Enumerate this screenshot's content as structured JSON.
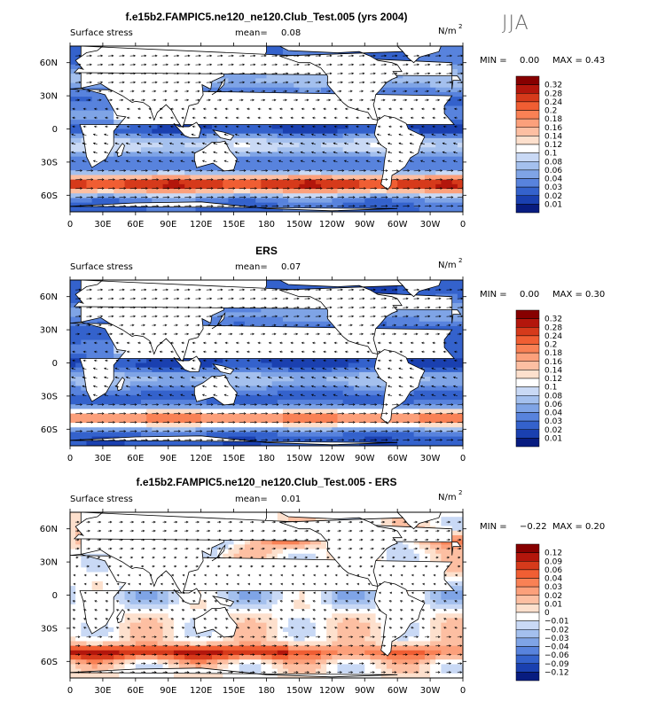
{
  "figure": {
    "season": "JJA"
  },
  "chart_data": [
    {
      "type": "heatmap",
      "title": "f.e15b2.FAMPIC5.ne120_ne120.Club_Test.005 (yrs 2004)",
      "left_label": "Surface stress",
      "mean_label": "mean=",
      "mean_value": "0.08",
      "units_label": "N/m",
      "units_sup": "2",
      "min_label": "MIN =",
      "min_value": "0.00",
      "max_label": "MAX =",
      "max_value": "0.43",
      "x_ticks": [
        "0",
        "30E",
        "60E",
        "90E",
        "120E",
        "150E",
        "180",
        "150W",
        "120W",
        "90W",
        "60W",
        "30W",
        "0"
      ],
      "y_ticks": [
        "60N",
        "30N",
        "0",
        "30S",
        "60S"
      ],
      "y_values": [
        60,
        30,
        0,
        -30,
        -60
      ],
      "ylim": [
        -75,
        75
      ],
      "colorbar_levels": [
        "0.32",
        "0.28",
        "0.24",
        "0.2",
        "0.18",
        "0.16",
        "0.14",
        "0.12",
        "0.1",
        "0.08",
        "0.06",
        "0.04",
        "0.03",
        "0.02",
        "0.01"
      ],
      "colorbar_colors": [
        "#870000",
        "#b3160c",
        "#d63a1b",
        "#f05e33",
        "#f98155",
        "#fca07b",
        "#fdbfa2",
        "#fde0cd",
        "#ffffff",
        "#c9d9f5",
        "#a4c0ee",
        "#7fa4e6",
        "#5883dd",
        "#3462cc",
        "#1a40b0",
        "#081c80"
      ]
    },
    {
      "type": "heatmap",
      "title": "ERS",
      "left_label": "Surface stress",
      "mean_label": "mean=",
      "mean_value": "0.07",
      "units_label": "N/m",
      "units_sup": "2",
      "min_label": "MIN =",
      "min_value": "0.00",
      "max_label": "MAX =",
      "max_value": "0.30",
      "x_ticks": [
        "0",
        "30E",
        "60E",
        "90E",
        "120E",
        "150E",
        "180",
        "150W",
        "120W",
        "90W",
        "60W",
        "30W",
        "0"
      ],
      "y_ticks": [
        "60N",
        "30N",
        "0",
        "30S",
        "60S"
      ],
      "y_values": [
        60,
        30,
        0,
        -30,
        -60
      ],
      "ylim": [
        -75,
        75
      ],
      "colorbar_levels": [
        "0.32",
        "0.28",
        "0.24",
        "0.2",
        "0.18",
        "0.16",
        "0.14",
        "0.12",
        "0.1",
        "0.08",
        "0.06",
        "0.04",
        "0.03",
        "0.02",
        "0.01"
      ],
      "colorbar_colors": [
        "#870000",
        "#b3160c",
        "#d63a1b",
        "#f05e33",
        "#f98155",
        "#fca07b",
        "#fdbfa2",
        "#fde0cd",
        "#ffffff",
        "#c9d9f5",
        "#a4c0ee",
        "#7fa4e6",
        "#5883dd",
        "#3462cc",
        "#1a40b0",
        "#081c80"
      ]
    },
    {
      "type": "heatmap",
      "title": "f.e15b2.FAMPIC5.ne120_ne120.Club_Test.005 - ERS",
      "left_label": "Surface stress",
      "mean_label": "mean=",
      "mean_value": "0.01",
      "units_label": "N/m",
      "units_sup": "2",
      "min_label": "MIN =",
      "min_value": "−0.22",
      "max_label": "MAX =",
      "max_value": "0.20",
      "x_ticks": [
        "0",
        "30E",
        "60E",
        "90E",
        "120E",
        "150E",
        "180",
        "150W",
        "120W",
        "90W",
        "60W",
        "30W",
        "0"
      ],
      "y_ticks": [
        "60N",
        "30N",
        "0",
        "30S",
        "60S"
      ],
      "y_values": [
        60,
        30,
        0,
        -30,
        -60
      ],
      "ylim": [
        -75,
        75
      ],
      "colorbar_levels": [
        "0.12",
        "0.09",
        "0.06",
        "0.04",
        "0.03",
        "0.02",
        "0.01",
        "0",
        "−0.01",
        "−0.02",
        "−0.03",
        "−0.04",
        "−0.06",
        "−0.09",
        "−0.12"
      ],
      "colorbar_colors": [
        "#870000",
        "#b3160c",
        "#d63a1b",
        "#f05e33",
        "#f98155",
        "#fca07b",
        "#fdbfa2",
        "#fde0cd",
        "#ffffff",
        "#c9d9f5",
        "#a4c0ee",
        "#7fa4e6",
        "#5883dd",
        "#3462cc",
        "#1a40b0",
        "#081c80"
      ]
    }
  ]
}
